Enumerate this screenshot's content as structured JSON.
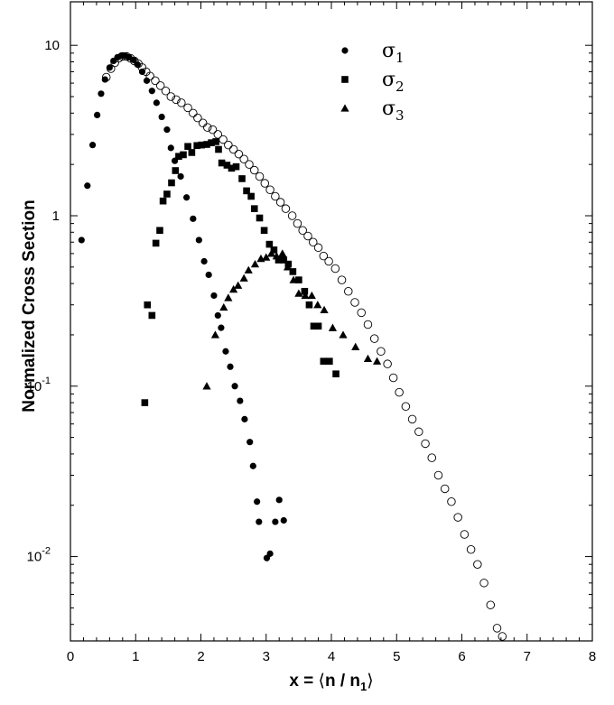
{
  "chart_data": {
    "type": "scatter",
    "title": "",
    "ylabel": "Normalized Cross Section",
    "xlabel": {
      "prefix": "x = ",
      "open": "⟨",
      "n": "n / n",
      "sub": "1",
      "close": "⟩"
    },
    "xlim": [
      0,
      8
    ],
    "ylim": [
      0.0032,
      18
    ],
    "yscale": "log",
    "grid": false,
    "legend_position": "top-right",
    "x_ticks": [
      "0",
      "1",
      "2",
      "3",
      "4",
      "5",
      "6",
      "7",
      "8"
    ],
    "y_ticks": [
      {
        "value": 10,
        "base": "10",
        "exp": ""
      },
      {
        "value": 1,
        "base": "1",
        "exp": ""
      },
      {
        "value": 0.1,
        "base": "10",
        "exp": "-1"
      },
      {
        "value": 0.01,
        "base": "10",
        "exp": "-2"
      }
    ],
    "series": [
      {
        "legend": {
          "symbol": "σ",
          "sub": "1"
        },
        "marker": "circle-filled",
        "color": "#000000",
        "points": [
          [
            0.17,
            0.72
          ],
          [
            0.26,
            1.5
          ],
          [
            0.34,
            2.6
          ],
          [
            0.41,
            3.9
          ],
          [
            0.47,
            5.2
          ],
          [
            0.53,
            6.3
          ],
          [
            0.6,
            7.4
          ],
          [
            0.66,
            8.1
          ],
          [
            0.72,
            8.5
          ],
          [
            0.78,
            8.7
          ],
          [
            0.84,
            8.7
          ],
          [
            0.9,
            8.5
          ],
          [
            0.97,
            8.2
          ],
          [
            1.03,
            7.7
          ],
          [
            1.1,
            7.0
          ],
          [
            1.17,
            6.2
          ],
          [
            1.25,
            5.4
          ],
          [
            1.32,
            4.6
          ],
          [
            1.4,
            3.8
          ],
          [
            1.48,
            3.2
          ],
          [
            1.54,
            2.5
          ],
          [
            1.6,
            2.1
          ],
          [
            1.69,
            1.7
          ],
          [
            1.78,
            1.28
          ],
          [
            1.88,
            0.96
          ],
          [
            1.97,
            0.72
          ],
          [
            2.05,
            0.54
          ],
          [
            2.12,
            0.45
          ],
          [
            2.2,
            0.34
          ],
          [
            2.26,
            0.26
          ],
          [
            2.31,
            0.22
          ],
          [
            2.38,
            0.16
          ],
          [
            2.45,
            0.13
          ],
          [
            2.52,
            0.1
          ],
          [
            2.6,
            0.082
          ],
          [
            2.67,
            0.064
          ],
          [
            2.75,
            0.047
          ],
          [
            2.8,
            0.034
          ],
          [
            2.86,
            0.021
          ],
          [
            2.89,
            0.016
          ],
          [
            3.01,
            0.0098
          ],
          [
            3.06,
            0.0104
          ],
          [
            3.14,
            0.016
          ],
          [
            3.2,
            0.0215
          ],
          [
            3.27,
            0.0163
          ]
        ]
      },
      {
        "legend": {
          "symbol": "σ",
          "sub": "2"
        },
        "marker": "square-filled",
        "color": "#000000",
        "points": [
          [
            1.14,
            0.08
          ],
          [
            1.18,
            0.3
          ],
          [
            1.25,
            0.26
          ],
          [
            1.31,
            0.69
          ],
          [
            1.37,
            0.82
          ],
          [
            1.42,
            1.22
          ],
          [
            1.48,
            1.34
          ],
          [
            1.55,
            1.56
          ],
          [
            1.61,
            1.84
          ],
          [
            1.66,
            2.23
          ],
          [
            1.73,
            2.28
          ],
          [
            1.8,
            2.55
          ],
          [
            1.86,
            2.35
          ],
          [
            1.94,
            2.58
          ],
          [
            2.01,
            2.6
          ],
          [
            2.09,
            2.62
          ],
          [
            2.16,
            2.68
          ],
          [
            2.23,
            2.72
          ],
          [
            2.27,
            2.45
          ],
          [
            2.32,
            2.04
          ],
          [
            2.4,
            1.98
          ],
          [
            2.47,
            1.9
          ],
          [
            2.54,
            1.94
          ],
          [
            2.63,
            1.65
          ],
          [
            2.7,
            1.4
          ],
          [
            2.77,
            1.3
          ],
          [
            2.82,
            1.1
          ],
          [
            2.9,
            0.97
          ],
          [
            2.97,
            0.82
          ],
          [
            3.05,
            0.68
          ],
          [
            3.12,
            0.63
          ],
          [
            3.19,
            0.55
          ],
          [
            3.27,
            0.55
          ],
          [
            3.34,
            0.52
          ],
          [
            3.41,
            0.47
          ],
          [
            3.5,
            0.42
          ],
          [
            3.59,
            0.36
          ],
          [
            3.66,
            0.3
          ],
          [
            3.73,
            0.225
          ],
          [
            3.8,
            0.225
          ],
          [
            3.88,
            0.14
          ],
          [
            3.97,
            0.14
          ],
          [
            4.07,
            0.118
          ]
        ]
      },
      {
        "legend": {
          "symbol": "σ",
          "sub": "3"
        },
        "marker": "triangle-filled",
        "color": "#000000",
        "points": [
          [
            2.09,
            0.1
          ],
          [
            2.22,
            0.2
          ],
          [
            2.35,
            0.29
          ],
          [
            2.42,
            0.33
          ],
          [
            2.5,
            0.37
          ],
          [
            2.57,
            0.39
          ],
          [
            2.66,
            0.43
          ],
          [
            2.73,
            0.48
          ],
          [
            2.83,
            0.52
          ],
          [
            2.92,
            0.56
          ],
          [
            3.0,
            0.57
          ],
          [
            3.08,
            0.6
          ],
          [
            3.16,
            0.58
          ],
          [
            3.25,
            0.6
          ],
          [
            3.33,
            0.5
          ],
          [
            3.42,
            0.42
          ],
          [
            3.5,
            0.35
          ],
          [
            3.6,
            0.34
          ],
          [
            3.7,
            0.34
          ],
          [
            3.79,
            0.3
          ],
          [
            3.89,
            0.28
          ],
          [
            4.02,
            0.22
          ],
          [
            4.18,
            0.2
          ],
          [
            4.37,
            0.17
          ],
          [
            4.56,
            0.145
          ],
          [
            4.7,
            0.14
          ]
        ]
      },
      {
        "legend": null,
        "marker": "circle-open",
        "color": "#000000",
        "points": [
          [
            0.55,
            6.5
          ],
          [
            0.62,
            7.3
          ],
          [
            0.68,
            7.9
          ],
          [
            0.74,
            8.4
          ],
          [
            0.8,
            8.6
          ],
          [
            0.86,
            8.6
          ],
          [
            0.92,
            8.4
          ],
          [
            0.98,
            8.1
          ],
          [
            1.04,
            7.8
          ],
          [
            1.1,
            7.4
          ],
          [
            1.16,
            7.0
          ],
          [
            1.22,
            6.6
          ],
          [
            1.3,
            6.2
          ],
          [
            1.38,
            5.8
          ],
          [
            1.46,
            5.4
          ],
          [
            1.54,
            5.0
          ],
          [
            1.62,
            4.8
          ],
          [
            1.7,
            4.6
          ],
          [
            1.8,
            4.3
          ],
          [
            1.88,
            4.0
          ],
          [
            1.95,
            3.75
          ],
          [
            2.03,
            3.5
          ],
          [
            2.1,
            3.3
          ],
          [
            2.18,
            3.2
          ],
          [
            2.26,
            3.0
          ],
          [
            2.34,
            2.8
          ],
          [
            2.42,
            2.6
          ],
          [
            2.5,
            2.45
          ],
          [
            2.58,
            2.3
          ],
          [
            2.66,
            2.15
          ],
          [
            2.74,
            2.0
          ],
          [
            2.82,
            1.85
          ],
          [
            2.9,
            1.7
          ],
          [
            2.98,
            1.55
          ],
          [
            3.06,
            1.42
          ],
          [
            3.14,
            1.3
          ],
          [
            3.22,
            1.2
          ],
          [
            3.3,
            1.1
          ],
          [
            3.4,
            1.0
          ],
          [
            3.48,
            0.9
          ],
          [
            3.56,
            0.82
          ],
          [
            3.64,
            0.76
          ],
          [
            3.72,
            0.7
          ],
          [
            3.8,
            0.65
          ],
          [
            3.88,
            0.58
          ],
          [
            3.96,
            0.54
          ],
          [
            4.06,
            0.49
          ],
          [
            4.16,
            0.42
          ],
          [
            4.26,
            0.36
          ],
          [
            4.36,
            0.31
          ],
          [
            4.46,
            0.27
          ],
          [
            4.56,
            0.23
          ],
          [
            4.66,
            0.19
          ],
          [
            4.76,
            0.16
          ],
          [
            4.86,
            0.135
          ],
          [
            4.95,
            0.112
          ],
          [
            5.04,
            0.092
          ],
          [
            5.14,
            0.076
          ],
          [
            5.24,
            0.064
          ],
          [
            5.34,
            0.054
          ],
          [
            5.44,
            0.046
          ],
          [
            5.54,
            0.038
          ],
          [
            5.64,
            0.03
          ],
          [
            5.74,
            0.025
          ],
          [
            5.84,
            0.021
          ],
          [
            5.94,
            0.017
          ],
          [
            6.04,
            0.0135
          ],
          [
            6.14,
            0.011
          ],
          [
            6.24,
            0.009
          ],
          [
            6.34,
            0.007
          ],
          [
            6.44,
            0.0052
          ],
          [
            6.54,
            0.0038
          ],
          [
            6.62,
            0.0034
          ]
        ]
      }
    ]
  }
}
